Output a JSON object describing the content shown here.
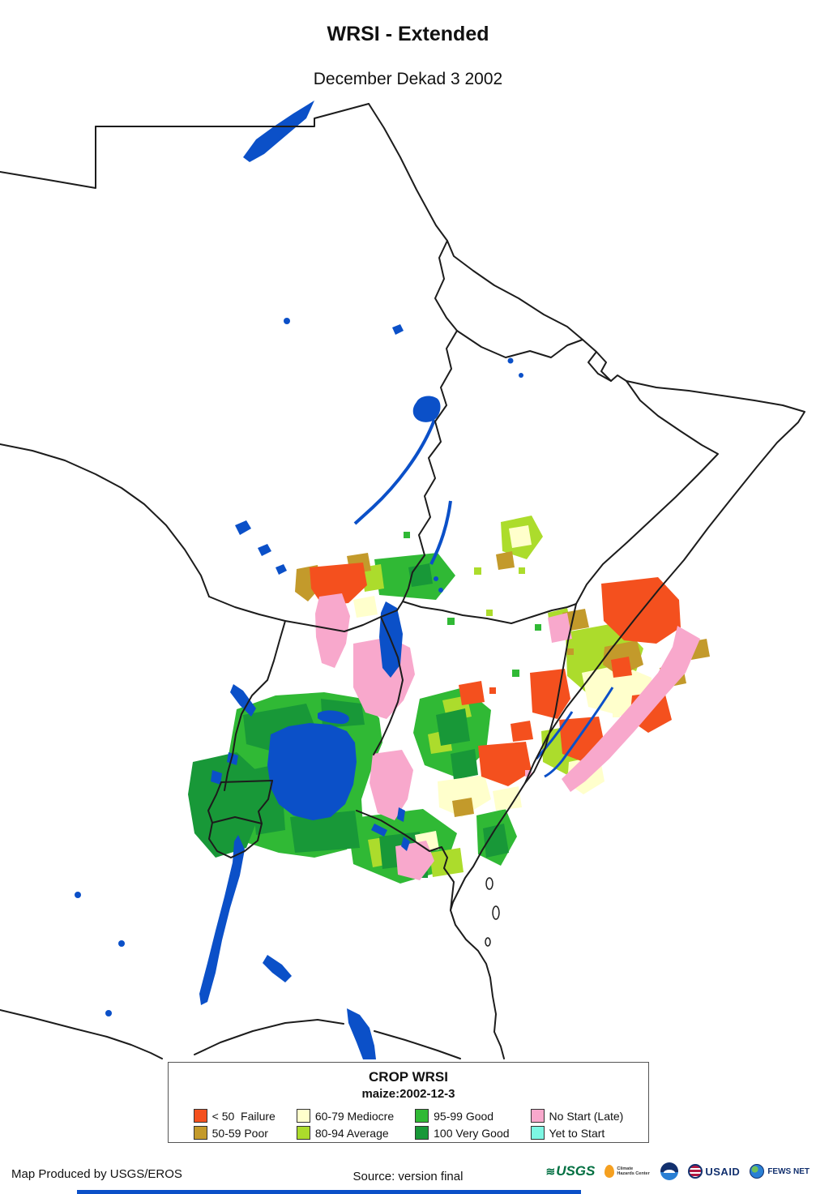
{
  "title": "WRSI - Extended",
  "subtitle": "December Dekad 3 2002",
  "legend": {
    "title": "CROP WRSI",
    "subtitle": "maize:2002-12-3",
    "items": [
      {
        "key": "failure",
        "label": "< 50  Failure",
        "color": "#F4501E"
      },
      {
        "key": "poor",
        "label": "50-59 Poor",
        "color": "#C39A2B"
      },
      {
        "key": "mediocre",
        "label": "60-79 Mediocre",
        "color": "#FFFFCC"
      },
      {
        "key": "average",
        "label": "80-94 Average",
        "color": "#ACDC2C"
      },
      {
        "key": "good",
        "label": "95-99 Good",
        "color": "#30B935"
      },
      {
        "key": "verygood",
        "label": "100 Very Good",
        "color": "#189838"
      },
      {
        "key": "nostart",
        "label": "No Start (Late)",
        "color": "#F8A8CC"
      },
      {
        "key": "yetstart",
        "label": "Yet to Start",
        "color": "#7DF6E3"
      }
    ]
  },
  "map": {
    "water_color": "#0B50C8",
    "border_color": "#1C1C1C",
    "background_color": "#FFFFFF"
  },
  "footer": {
    "produced_by": "Map Produced by USGS/EROS",
    "source": "Source: version final",
    "logos": {
      "usgs": "USGS",
      "chc": "Climate Hazards Center",
      "usaid": "USAID",
      "fews": "FEWS NET"
    }
  }
}
